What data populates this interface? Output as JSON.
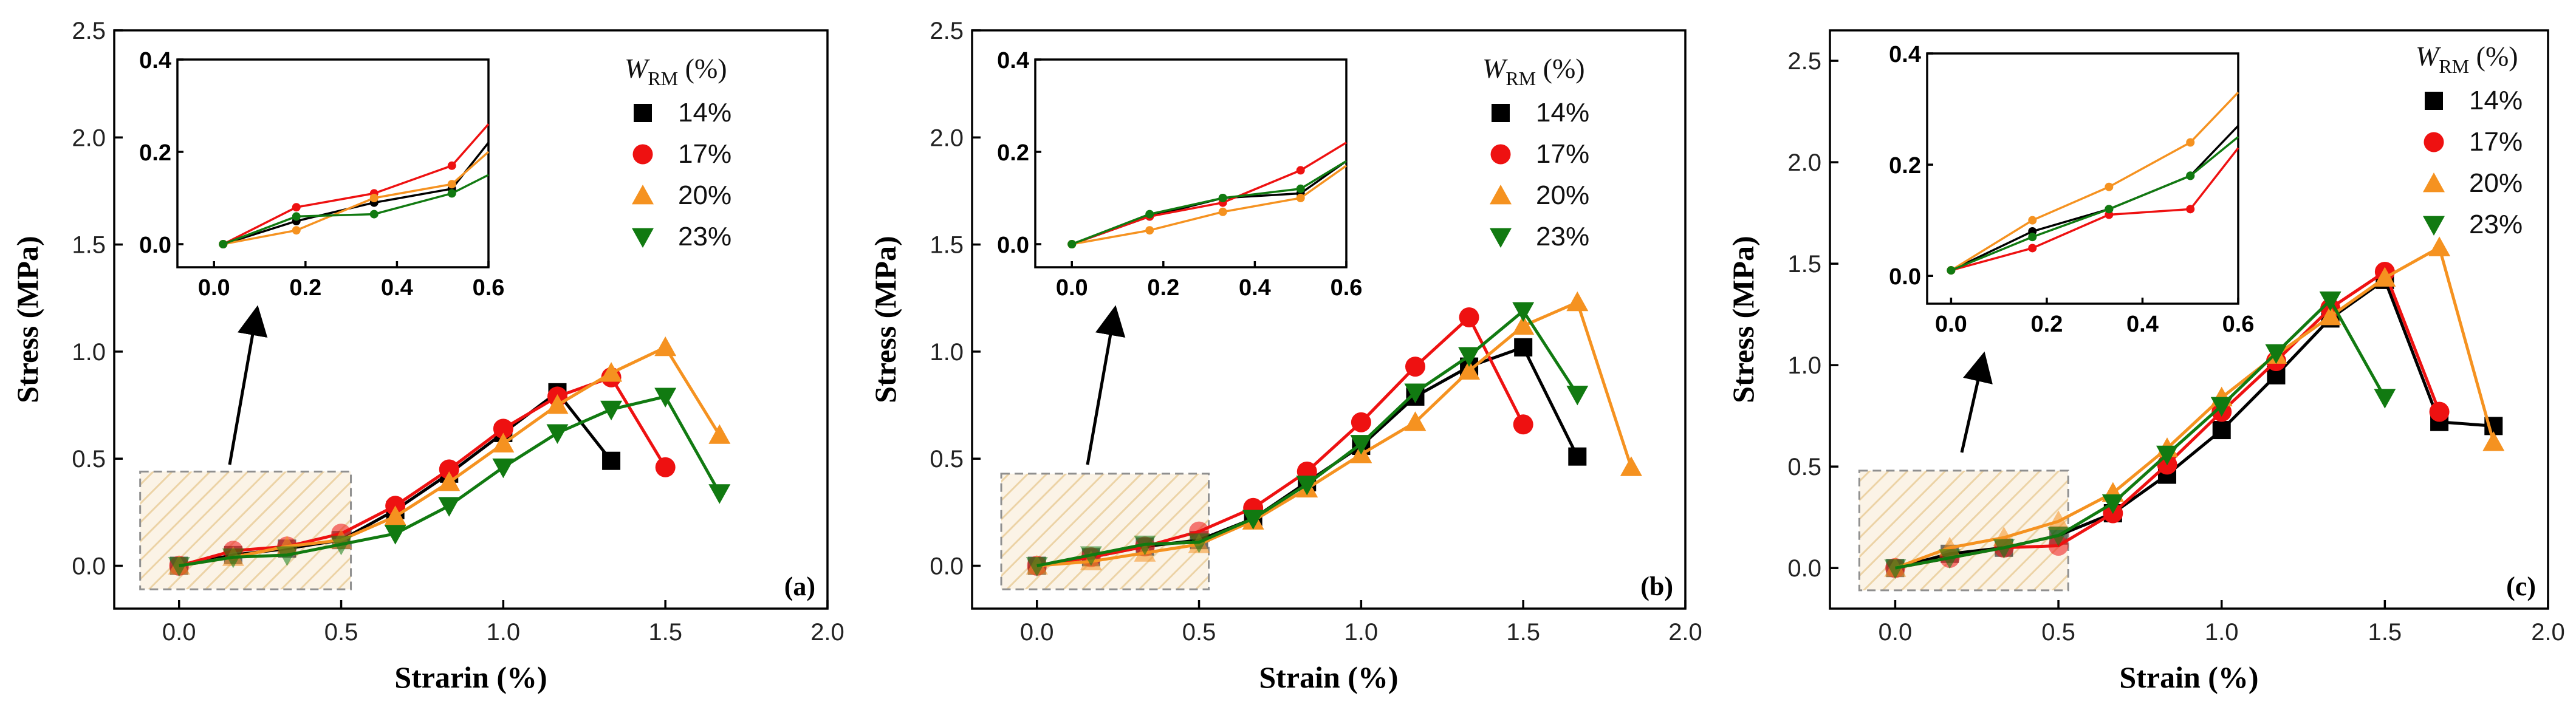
{
  "legend_title": {
    "main": "W",
    "sub": "RM",
    "unit": " (%)"
  },
  "colors": {
    "14%": "#000000",
    "17%": "#ee1111",
    "20%": "#f59220",
    "23%": "#117a11"
  },
  "markers": {
    "14%": "square",
    "17%": "circle",
    "20%": "triangle-up",
    "23%": "triangle-down"
  },
  "chart_data": [
    {
      "type": "line",
      "panel_label": "(a)",
      "xlabel": "Strarin (%)",
      "ylabel": "Stress (MPa)",
      "xlim": [
        -0.2,
        2.0
      ],
      "ylim": [
        -0.2,
        2.5
      ],
      "xticks": [
        0.0,
        0.5,
        1.0,
        1.5,
        2.0
      ],
      "xtick_labels": [
        "0.0",
        "0.5",
        "1.0",
        "1.5",
        "2.0"
      ],
      "yticks": [
        0.0,
        0.5,
        1.0,
        1.5,
        2.0,
        2.5
      ],
      "ytick_labels": [
        "0.0",
        "0.5",
        "1.0",
        "1.5",
        "2.0",
        "2.5"
      ],
      "zoom_region": {
        "x": [
          -0.12,
          0.53
        ],
        "y": [
          -0.11,
          0.44
        ]
      },
      "series": [
        {
          "name": "14%",
          "x": [
            0,
            0.167,
            0.333,
            0.5,
            0.667,
            0.833,
            1.0,
            1.167,
            1.333
          ],
          "y": [
            0,
            0.05,
            0.08,
            0.12,
            0.26,
            0.43,
            0.62,
            0.81,
            0.49
          ]
        },
        {
          "name": "17%",
          "x": [
            0,
            0.167,
            0.333,
            0.5,
            0.667,
            0.833,
            1.0,
            1.167,
            1.333,
            1.5
          ],
          "y": [
            0,
            0.07,
            0.09,
            0.15,
            0.28,
            0.45,
            0.64,
            0.79,
            0.88,
            0.46
          ]
        },
        {
          "name": "20%",
          "x": [
            0,
            0.167,
            0.333,
            0.5,
            0.667,
            0.833,
            1.0,
            1.167,
            1.333,
            1.5,
            1.667
          ],
          "y": [
            0,
            0.04,
            0.09,
            0.12,
            0.23,
            0.39,
            0.57,
            0.75,
            0.9,
            1.02,
            0.61
          ]
        },
        {
          "name": "23%",
          "x": [
            0,
            0.167,
            0.333,
            0.5,
            0.667,
            0.833,
            1.0,
            1.167,
            1.333,
            1.5,
            1.667
          ],
          "y": [
            0,
            0.04,
            0.05,
            0.1,
            0.15,
            0.28,
            0.46,
            0.62,
            0.73,
            0.79,
            0.34
          ]
        }
      ],
      "inset": {
        "xlim": [
          -0.08,
          0.6
        ],
        "ylim": [
          -0.05,
          0.4
        ],
        "xticks": [
          0.0,
          0.2,
          0.4,
          0.6
        ],
        "xtick_labels": [
          "0.0",
          "0.2",
          "0.4",
          "0.6"
        ],
        "yticks": [
          0.0,
          0.2,
          0.4
        ],
        "ytick_labels": [
          "0.0",
          "0.2",
          "0.4"
        ],
        "series": [
          {
            "name": "14%",
            "x": [
              0.02,
              0.18,
              0.35,
              0.52,
              0.6
            ],
            "y": [
              0.0,
              0.05,
              0.09,
              0.12,
              0.22
            ]
          },
          {
            "name": "17%",
            "x": [
              0.02,
              0.18,
              0.35,
              0.52,
              0.6
            ],
            "y": [
              0.0,
              0.08,
              0.11,
              0.17,
              0.26
            ]
          },
          {
            "name": "20%",
            "x": [
              0.02,
              0.18,
              0.35,
              0.52,
              0.6
            ],
            "y": [
              0.0,
              0.03,
              0.1,
              0.13,
              0.2
            ]
          },
          {
            "name": "23%",
            "x": [
              0.02,
              0.18,
              0.35,
              0.52,
              0.6
            ],
            "y": [
              0.0,
              0.06,
              0.065,
              0.11,
              0.15
            ]
          }
        ]
      }
    },
    {
      "type": "line",
      "panel_label": "(b)",
      "xlabel": "Strain (%)",
      "ylabel": "Stress (MPa)",
      "xlim": [
        -0.2,
        2.0
      ],
      "ylim": [
        -0.2,
        2.5
      ],
      "xticks": [
        0.0,
        0.5,
        1.0,
        1.5,
        2.0
      ],
      "xtick_labels": [
        "0.0",
        "0.5",
        "1.0",
        "1.5",
        "2.0"
      ],
      "yticks": [
        0.0,
        0.5,
        1.0,
        1.5,
        2.0,
        2.5
      ],
      "ytick_labels": [
        "0.0",
        "0.5",
        "1.0",
        "1.5",
        "2.0",
        "2.5"
      ],
      "zoom_region": {
        "x": [
          -0.11,
          0.53
        ],
        "y": [
          -0.11,
          0.43
        ]
      },
      "series": [
        {
          "name": "14%",
          "x": [
            0,
            0.167,
            0.333,
            0.5,
            0.667,
            0.833,
            1.0,
            1.167,
            1.333,
            1.5,
            1.667
          ],
          "y": [
            0,
            0.04,
            0.09,
            0.12,
            0.22,
            0.39,
            0.56,
            0.79,
            0.93,
            1.02,
            0.51
          ]
        },
        {
          "name": "17%",
          "x": [
            0,
            0.167,
            0.333,
            0.5,
            0.667,
            0.833,
            1.0,
            1.167,
            1.333,
            1.5
          ],
          "y": [
            0,
            0.04,
            0.09,
            0.16,
            0.27,
            0.44,
            0.67,
            0.93,
            1.16,
            0.66
          ]
        },
        {
          "name": "20%",
          "x": [
            0,
            0.167,
            0.333,
            0.5,
            0.667,
            0.833,
            1.0,
            1.167,
            1.333,
            1.5,
            1.667,
            1.833
          ],
          "y": [
            0,
            0.02,
            0.06,
            0.1,
            0.21,
            0.36,
            0.52,
            0.67,
            0.91,
            1.12,
            1.23,
            0.46
          ]
        },
        {
          "name": "23%",
          "x": [
            0,
            0.167,
            0.333,
            0.5,
            0.667,
            0.833,
            1.0,
            1.167,
            1.333,
            1.5,
            1.667
          ],
          "y": [
            0,
            0.05,
            0.1,
            0.11,
            0.22,
            0.38,
            0.57,
            0.81,
            0.98,
            1.19,
            0.8
          ]
        }
      ],
      "inset": {
        "xlim": [
          -0.08,
          0.6
        ],
        "ylim": [
          -0.05,
          0.4
        ],
        "xticks": [
          0.0,
          0.2,
          0.4,
          0.6
        ],
        "xtick_labels": [
          "0.0",
          "0.2",
          "0.4",
          "0.6"
        ],
        "yticks": [
          0.0,
          0.2,
          0.4
        ],
        "ytick_labels": [
          "0.0",
          "0.2",
          "0.4"
        ],
        "series": [
          {
            "name": "14%",
            "x": [
              0.0,
              0.17,
              0.33,
              0.5,
              0.6
            ],
            "y": [
              0.0,
              0.06,
              0.1,
              0.11,
              0.18
            ]
          },
          {
            "name": "17%",
            "x": [
              0.0,
              0.17,
              0.33,
              0.5,
              0.6
            ],
            "y": [
              0.0,
              0.06,
              0.09,
              0.16,
              0.22
            ]
          },
          {
            "name": "20%",
            "x": [
              0.0,
              0.17,
              0.33,
              0.5,
              0.6
            ],
            "y": [
              0.0,
              0.03,
              0.07,
              0.1,
              0.17
            ]
          },
          {
            "name": "23%",
            "x": [
              0.0,
              0.17,
              0.33,
              0.5,
              0.6
            ],
            "y": [
              0.0,
              0.065,
              0.1,
              0.12,
              0.18
            ]
          }
        ]
      }
    },
    {
      "type": "line",
      "panel_label": "(c)",
      "xlabel": "Strain (%)",
      "ylabel": "Stress (MPa)",
      "xlim": [
        -0.2,
        2.0
      ],
      "ylim": [
        -0.2,
        2.65
      ],
      "xticks": [
        0.0,
        0.5,
        1.0,
        1.5,
        2.0
      ],
      "xtick_labels": [
        "0.0",
        "0.5",
        "1.0",
        "1.5",
        "2.0"
      ],
      "yticks": [
        0.0,
        0.5,
        1.0,
        1.5,
        2.0,
        2.5
      ],
      "ytick_labels": [
        "0.0",
        "0.5",
        "1.0",
        "1.5",
        "2.0",
        "2.5"
      ],
      "zoom_region": {
        "x": [
          -0.11,
          0.53
        ],
        "y": [
          -0.11,
          0.48
        ]
      },
      "series": [
        {
          "name": "14%",
          "x": [
            0,
            0.167,
            0.333,
            0.5,
            0.667,
            0.833,
            1.0,
            1.167,
            1.333,
            1.5,
            1.667,
            1.833
          ],
          "y": [
            0,
            0.07,
            0.1,
            0.16,
            0.27,
            0.46,
            0.68,
            0.95,
            1.23,
            1.42,
            0.72,
            0.7
          ]
        },
        {
          "name": "17%",
          "x": [
            0,
            0.167,
            0.333,
            0.5,
            0.667,
            0.833,
            1.0,
            1.167,
            1.333,
            1.5,
            1.667
          ],
          "y": [
            0,
            0.05,
            0.1,
            0.11,
            0.27,
            0.51,
            0.77,
            1.02,
            1.28,
            1.46,
            0.77
          ]
        },
        {
          "name": "20%",
          "x": [
            0,
            0.167,
            0.333,
            0.5,
            0.667,
            0.833,
            1.0,
            1.167,
            1.333,
            1.5,
            1.667,
            1.833
          ],
          "y": [
            0,
            0.1,
            0.15,
            0.23,
            0.37,
            0.59,
            0.84,
            1.05,
            1.24,
            1.43,
            1.58,
            0.62
          ]
        },
        {
          "name": "23%",
          "x": [
            0,
            0.167,
            0.333,
            0.5,
            0.667,
            0.833,
            1.0,
            1.167,
            1.333,
            1.5
          ],
          "y": [
            0,
            0.05,
            0.1,
            0.16,
            0.32,
            0.56,
            0.8,
            1.06,
            1.32,
            0.84
          ]
        }
      ],
      "inset": {
        "xlim": [
          -0.05,
          0.6
        ],
        "ylim": [
          -0.05,
          0.4
        ],
        "xticks": [
          0.0,
          0.2,
          0.4,
          0.6
        ],
        "xtick_labels": [
          "0.0",
          "0.2",
          "0.4",
          "0.6"
        ],
        "yticks": [
          0.0,
          0.2,
          0.4
        ],
        "ytick_labels": [
          "0.0",
          "0.2",
          "0.4"
        ],
        "series": [
          {
            "name": "14%",
            "x": [
              0.0,
              0.17,
              0.33,
              0.5,
              0.6
            ],
            "y": [
              0.01,
              0.08,
              0.12,
              0.18,
              0.27
            ]
          },
          {
            "name": "17%",
            "x": [
              0.0,
              0.17,
              0.33,
              0.5,
              0.6
            ],
            "y": [
              0.01,
              0.05,
              0.11,
              0.12,
              0.23
            ]
          },
          {
            "name": "20%",
            "x": [
              0.0,
              0.17,
              0.33,
              0.5,
              0.6
            ],
            "y": [
              0.01,
              0.1,
              0.16,
              0.24,
              0.33
            ]
          },
          {
            "name": "23%",
            "x": [
              0.0,
              0.17,
              0.33,
              0.5,
              0.6
            ],
            "y": [
              0.01,
              0.07,
              0.12,
              0.18,
              0.25
            ]
          }
        ]
      }
    }
  ]
}
